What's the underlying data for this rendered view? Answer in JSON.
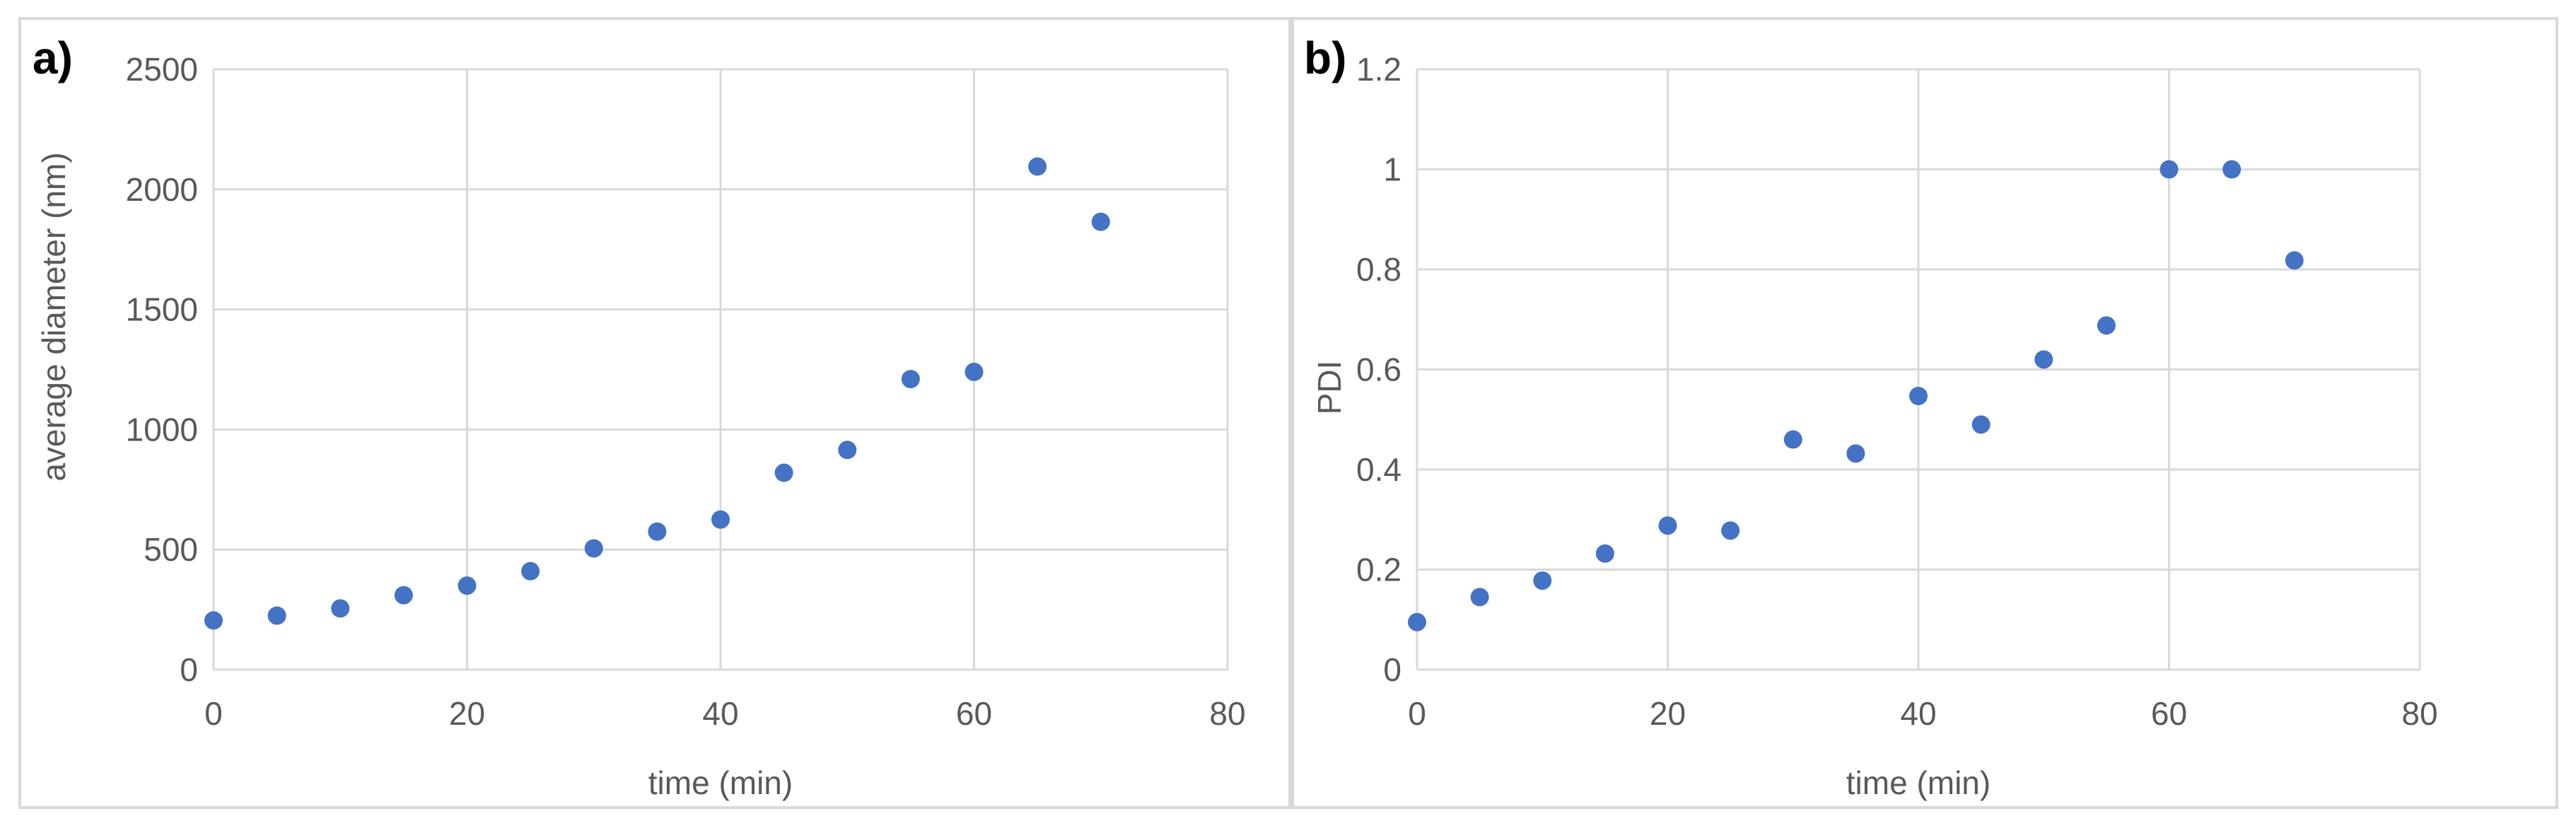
{
  "chart_data": [
    {
      "type": "scatter",
      "panel_label": "a)",
      "xlabel": "time (min)",
      "ylabel": "average diameter (nm)",
      "xlim": [
        0,
        80
      ],
      "ylim": [
        0,
        2500
      ],
      "xticks": [
        0,
        20,
        40,
        60,
        80
      ],
      "yticks": [
        0,
        500,
        1000,
        1500,
        2000,
        2500
      ],
      "grid": true,
      "marker_color": "#4472c4",
      "series": [
        {
          "x": [
            0,
            5,
            10,
            15,
            20,
            25,
            30,
            35,
            40,
            45,
            50,
            55,
            60,
            65,
            70
          ],
          "y": [
            205,
            225,
            255,
            310,
            350,
            410,
            505,
            575,
            625,
            820,
            915,
            1210,
            1240,
            2095,
            1865
          ]
        }
      ]
    },
    {
      "type": "scatter",
      "panel_label": "b)",
      "xlabel": "time (min)",
      "ylabel": "PDI",
      "xlim": [
        0,
        80
      ],
      "ylim": [
        0,
        1.2
      ],
      "xticks": [
        0,
        20,
        40,
        60,
        80
      ],
      "yticks": [
        0,
        0.2,
        0.4,
        0.6,
        0.8,
        1,
        1.2
      ],
      "grid": true,
      "marker_color": "#4472c4",
      "series": [
        {
          "x": [
            0,
            5,
            10,
            15,
            20,
            25,
            30,
            35,
            40,
            45,
            50,
            55,
            60,
            65,
            70
          ],
          "y": [
            0.095,
            0.145,
            0.178,
            0.232,
            0.288,
            0.278,
            0.46,
            0.432,
            0.547,
            0.49,
            0.62,
            0.688,
            1.0,
            1.0,
            0.818
          ]
        }
      ]
    }
  ]
}
